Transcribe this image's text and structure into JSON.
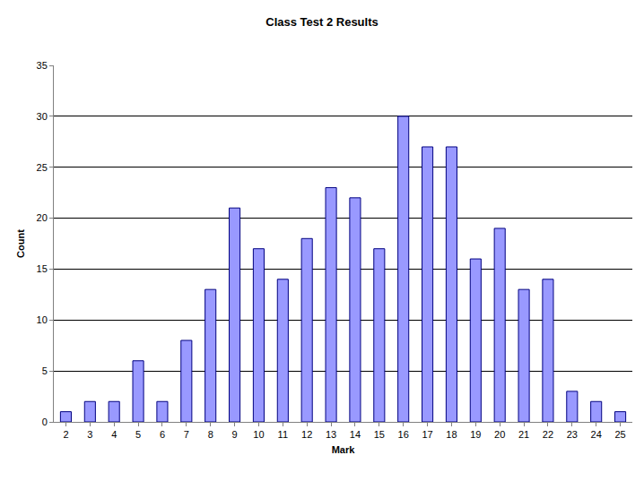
{
  "chart_data": {
    "type": "bar",
    "title": "Class Test 2 Results",
    "x_label": "Mark",
    "y_label": "Count",
    "categories": [
      "2",
      "3",
      "4",
      "5",
      "6",
      "7",
      "8",
      "9",
      "10",
      "11",
      "12",
      "13",
      "14",
      "15",
      "16",
      "17",
      "18",
      "19",
      "20",
      "21",
      "22",
      "23",
      "24",
      "25"
    ],
    "values": [
      1,
      2,
      2,
      6,
      2,
      8,
      13,
      21,
      17,
      14,
      18,
      23,
      22,
      17,
      30,
      27,
      27,
      16,
      19,
      13,
      14,
      3,
      2,
      1
    ],
    "color": "#9999ff",
    "ylim": [
      0,
      35
    ],
    "yticks": [
      0,
      5,
      10,
      15,
      20,
      25,
      30,
      35
    ],
    "grid": true
  }
}
